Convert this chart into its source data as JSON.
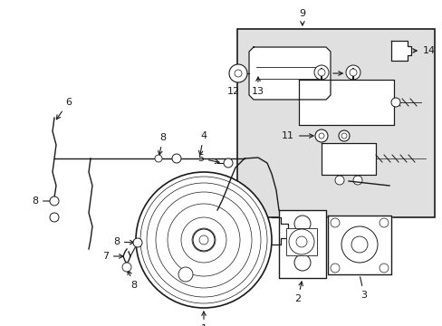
{
  "bg_color": "#ffffff",
  "line_color": "#1a1a1a",
  "box_bg": "#e0e0e0",
  "fig_width": 4.89,
  "fig_height": 3.6,
  "dpi": 100
}
